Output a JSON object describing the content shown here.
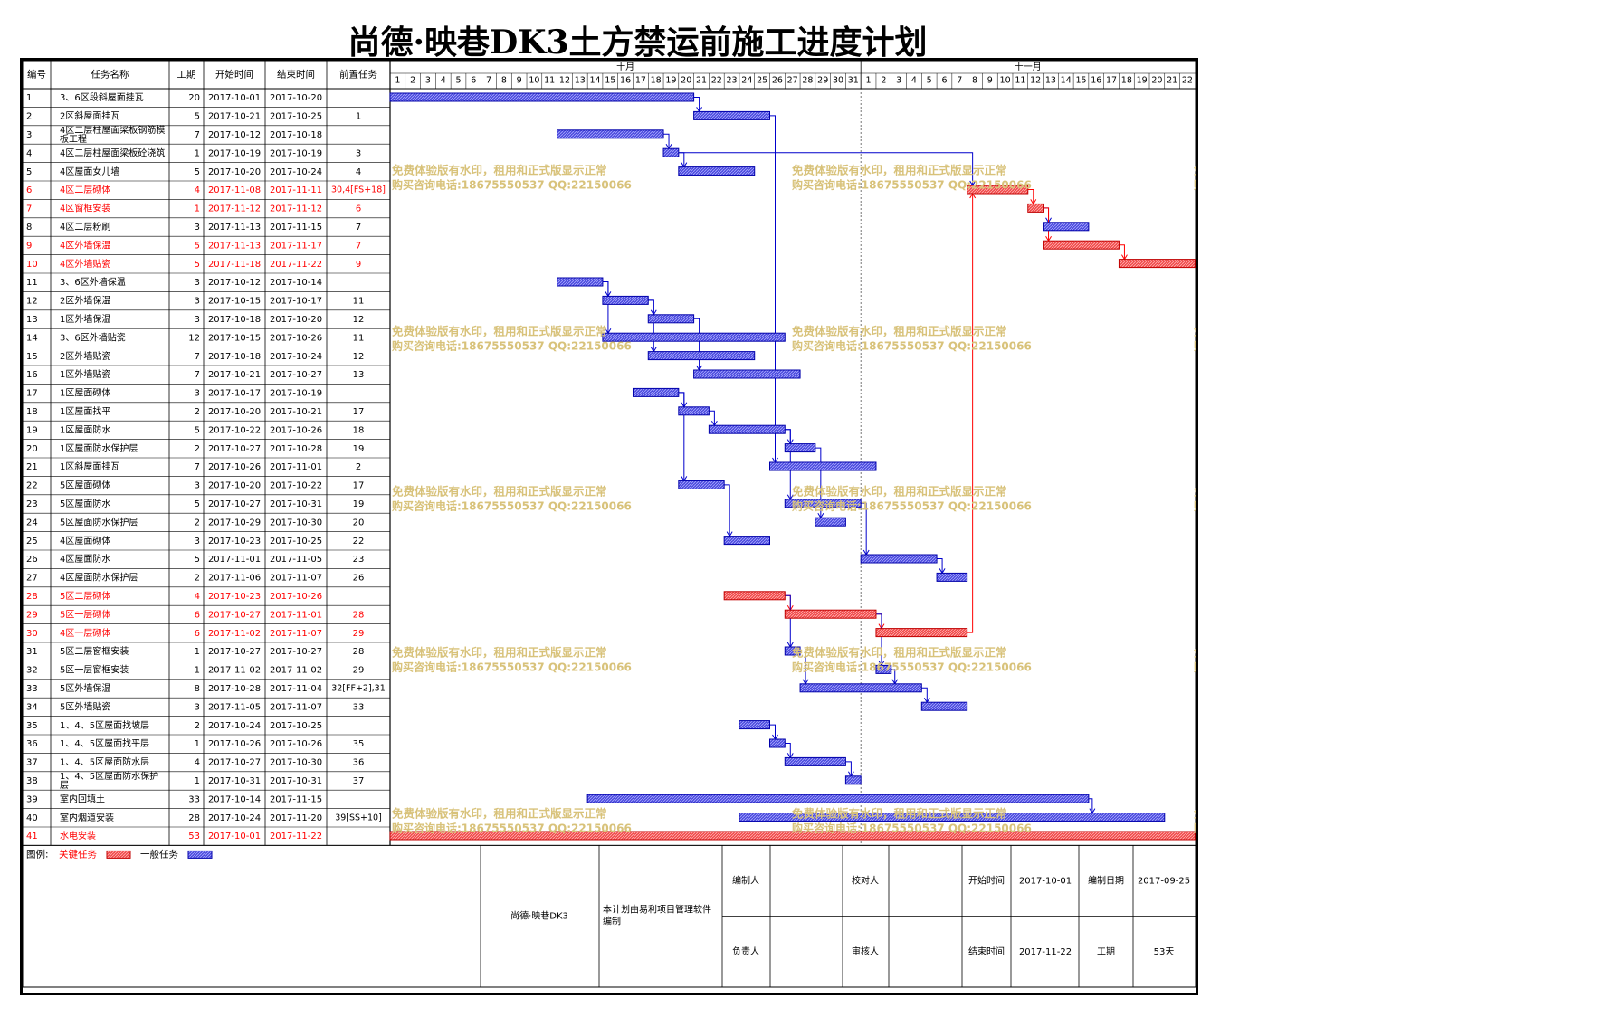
{
  "title": "尚德·映巷DK3土方禁运前施工进度计划",
  "table_headers": [
    "编号",
    "任务名称",
    "工期",
    "开始时间",
    "结束时间",
    "前置任务"
  ],
  "months": [
    {
      "label": "十月",
      "days": [
        "1",
        "2",
        "3",
        "4",
        "5",
        "6",
        "7",
        "8",
        "9",
        "10",
        "11",
        "12",
        "13",
        "14",
        "15",
        "16",
        "17",
        "18",
        "19",
        "20",
        "21",
        "22",
        "23",
        "24",
        "25",
        "26",
        "27",
        "28",
        "29",
        "30",
        "31"
      ]
    },
    {
      "label": "十一月",
      "days": [
        "1",
        "2",
        "3",
        "4",
        "5",
        "6",
        "7",
        "8",
        "9",
        "10",
        "11",
        "12",
        "13",
        "14",
        "15",
        "16",
        "17",
        "18",
        "19",
        "20",
        "21",
        "22"
      ]
    }
  ],
  "watermark": {
    "line1": "免费体验版有水印，租用和正式版显示正常",
    "line2": "购买咨询电话:18675550537 QQ:22150066"
  },
  "colors": {
    "critical": "#f04a4a",
    "normal": "#4b4bdc",
    "critical_text": "#ff0000",
    "normal_link": "#0000cc",
    "watermark": "#d8c27a"
  },
  "chart_data": {
    "type": "gantt",
    "title": "尚德·映巷DK3土方禁运前施工进度计划",
    "date_range": [
      "2017-10-01",
      "2017-11-22"
    ],
    "tasks": [
      {
        "id": "1",
        "name": "3、6区段斜屋面挂瓦",
        "duration": "20",
        "start": "2017-10-01",
        "end": "2017-10-20",
        "pred": "",
        "critical": false
      },
      {
        "id": "2",
        "name": "2区斜屋面挂瓦",
        "duration": "5",
        "start": "2017-10-21",
        "end": "2017-10-25",
        "pred": "1",
        "critical": false
      },
      {
        "id": "3",
        "name": "4区二层柱屋面梁板钢筋模板工程",
        "duration": "7",
        "start": "2017-10-12",
        "end": "2017-10-18",
        "pred": "",
        "critical": false
      },
      {
        "id": "4",
        "name": "4区二层柱屋面梁板砼浇筑",
        "duration": "1",
        "start": "2017-10-19",
        "end": "2017-10-19",
        "pred": "3",
        "critical": false
      },
      {
        "id": "5",
        "name": "4区屋面女儿墙",
        "duration": "5",
        "start": "2017-10-20",
        "end": "2017-10-24",
        "pred": "4",
        "critical": false
      },
      {
        "id": "6",
        "name": "4区二层砌体",
        "duration": "4",
        "start": "2017-11-08",
        "end": "2017-11-11",
        "pred": "30,4[FS+18]",
        "critical": true
      },
      {
        "id": "7",
        "name": "4区窗框安装",
        "duration": "1",
        "start": "2017-11-12",
        "end": "2017-11-12",
        "pred": "6",
        "critical": true
      },
      {
        "id": "8",
        "name": "4区二层粉刷",
        "duration": "3",
        "start": "2017-11-13",
        "end": "2017-11-15",
        "pred": "7",
        "critical": false
      },
      {
        "id": "9",
        "name": "4区外墙保温",
        "duration": "5",
        "start": "2017-11-13",
        "end": "2017-11-17",
        "pred": "7",
        "critical": true
      },
      {
        "id": "10",
        "name": "4区外墙贴瓷",
        "duration": "5",
        "start": "2017-11-18",
        "end": "2017-11-22",
        "pred": "9",
        "critical": true
      },
      {
        "id": "11",
        "name": "3、6区外墙保温",
        "duration": "3",
        "start": "2017-10-12",
        "end": "2017-10-14",
        "pred": "",
        "critical": false
      },
      {
        "id": "12",
        "name": "2区外墙保温",
        "duration": "3",
        "start": "2017-10-15",
        "end": "2017-10-17",
        "pred": "11",
        "critical": false
      },
      {
        "id": "13",
        "name": "1区外墙保温",
        "duration": "3",
        "start": "2017-10-18",
        "end": "2017-10-20",
        "pred": "12",
        "critical": false
      },
      {
        "id": "14",
        "name": "3、6区外墙贴瓷",
        "duration": "12",
        "start": "2017-10-15",
        "end": "2017-10-26",
        "pred": "11",
        "critical": false
      },
      {
        "id": "15",
        "name": "2区外墙贴瓷",
        "duration": "7",
        "start": "2017-10-18",
        "end": "2017-10-24",
        "pred": "12",
        "critical": false
      },
      {
        "id": "16",
        "name": "1区外墙贴瓷",
        "duration": "7",
        "start": "2017-10-21",
        "end": "2017-10-27",
        "pred": "13",
        "critical": false
      },
      {
        "id": "17",
        "name": "1区屋面砌体",
        "duration": "3",
        "start": "2017-10-17",
        "end": "2017-10-19",
        "pred": "",
        "critical": false
      },
      {
        "id": "18",
        "name": "1区屋面找平",
        "duration": "2",
        "start": "2017-10-20",
        "end": "2017-10-21",
        "pred": "17",
        "critical": false
      },
      {
        "id": "19",
        "name": "1区屋面防水",
        "duration": "5",
        "start": "2017-10-22",
        "end": "2017-10-26",
        "pred": "18",
        "critical": false
      },
      {
        "id": "20",
        "name": "1区屋面防水保护层",
        "duration": "2",
        "start": "2017-10-27",
        "end": "2017-10-28",
        "pred": "19",
        "critical": false
      },
      {
        "id": "21",
        "name": "1区斜屋面挂瓦",
        "duration": "7",
        "start": "2017-10-26",
        "end": "2017-11-01",
        "pred": "2",
        "critical": false
      },
      {
        "id": "22",
        "name": "5区屋面砌体",
        "duration": "3",
        "start": "2017-10-20",
        "end": "2017-10-22",
        "pred": "17",
        "critical": false
      },
      {
        "id": "23",
        "name": "5区屋面防水",
        "duration": "5",
        "start": "2017-10-27",
        "end": "2017-10-31",
        "pred": "19",
        "critical": false
      },
      {
        "id": "24",
        "name": "5区屋面防水保护层",
        "duration": "2",
        "start": "2017-10-29",
        "end": "2017-10-30",
        "pred": "20",
        "critical": false
      },
      {
        "id": "25",
        "name": "4区屋面砌体",
        "duration": "3",
        "start": "2017-10-23",
        "end": "2017-10-25",
        "pred": "22",
        "critical": false
      },
      {
        "id": "26",
        "name": "4区屋面防水",
        "duration": "5",
        "start": "2017-11-01",
        "end": "2017-11-05",
        "pred": "23",
        "critical": false
      },
      {
        "id": "27",
        "name": "4区屋面防水保护层",
        "duration": "2",
        "start": "2017-11-06",
        "end": "2017-11-07",
        "pred": "26",
        "critical": false
      },
      {
        "id": "28",
        "name": "5区二层砌体",
        "duration": "4",
        "start": "2017-10-23",
        "end": "2017-10-26",
        "pred": "",
        "critical": true
      },
      {
        "id": "29",
        "name": "5区一层砌体",
        "duration": "6",
        "start": "2017-10-27",
        "end": "2017-11-01",
        "pred": "28",
        "critical": true
      },
      {
        "id": "30",
        "name": "4区一层砌体",
        "duration": "6",
        "start": "2017-11-02",
        "end": "2017-11-07",
        "pred": "29",
        "critical": true
      },
      {
        "id": "31",
        "name": "5区二层窗框安装",
        "duration": "1",
        "start": "2017-10-27",
        "end": "2017-10-27",
        "pred": "28",
        "critical": false
      },
      {
        "id": "32",
        "name": "5区一层窗框安装",
        "duration": "1",
        "start": "2017-11-02",
        "end": "2017-11-02",
        "pred": "29",
        "critical": false
      },
      {
        "id": "33",
        "name": "5区外墙保温",
        "duration": "8",
        "start": "2017-10-28",
        "end": "2017-11-04",
        "pred": "32[FF+2],31",
        "critical": false
      },
      {
        "id": "34",
        "name": "5区外墙贴瓷",
        "duration": "3",
        "start": "2017-11-05",
        "end": "2017-11-07",
        "pred": "33",
        "critical": false
      },
      {
        "id": "35",
        "name": "1、4、5区屋面找坡层",
        "duration": "2",
        "start": "2017-10-24",
        "end": "2017-10-25",
        "pred": "",
        "critical": false
      },
      {
        "id": "36",
        "name": "1、4、5区屋面找平层",
        "duration": "1",
        "start": "2017-10-26",
        "end": "2017-10-26",
        "pred": "35",
        "critical": false
      },
      {
        "id": "37",
        "name": "1、4、5区屋面防水层",
        "duration": "4",
        "start": "2017-10-27",
        "end": "2017-10-30",
        "pred": "36",
        "critical": false
      },
      {
        "id": "38",
        "name": "1、4、5区屋面防水保护层",
        "duration": "1",
        "start": "2017-10-31",
        "end": "2017-10-31",
        "pred": "37",
        "critical": false
      },
      {
        "id": "39",
        "name": "室内回填土",
        "duration": "33",
        "start": "2017-10-14",
        "end": "2017-11-15",
        "pred": "",
        "critical": false
      },
      {
        "id": "40",
        "name": "室内烟道安装",
        "duration": "28",
        "start": "2017-10-24",
        "end": "2017-11-20",
        "pred": "39[SS+10]",
        "critical": false
      },
      {
        "id": "41",
        "name": "水电安装",
        "duration": "53",
        "start": "2017-10-01",
        "end": "2017-11-22",
        "pred": "",
        "critical": true
      }
    ]
  },
  "footer": {
    "legend_label": "图例:",
    "critical_label": "关键任务",
    "normal_label": "一般任务",
    "project": "尚德·映巷DK3",
    "note": "本计划由易利项目管理软件编制",
    "compiler_label": "编制人",
    "checker_label": "校对人",
    "owner_label": "负责人",
    "auditor_label": "审核人",
    "start_label": "开始时间",
    "start_value": "2017-10-01",
    "end_label": "结束时间",
    "end_value": "2017-11-22",
    "date_label": "编制日期",
    "date_value": "2017-09-25",
    "duration_label": "工期",
    "duration_value": "53天"
  }
}
